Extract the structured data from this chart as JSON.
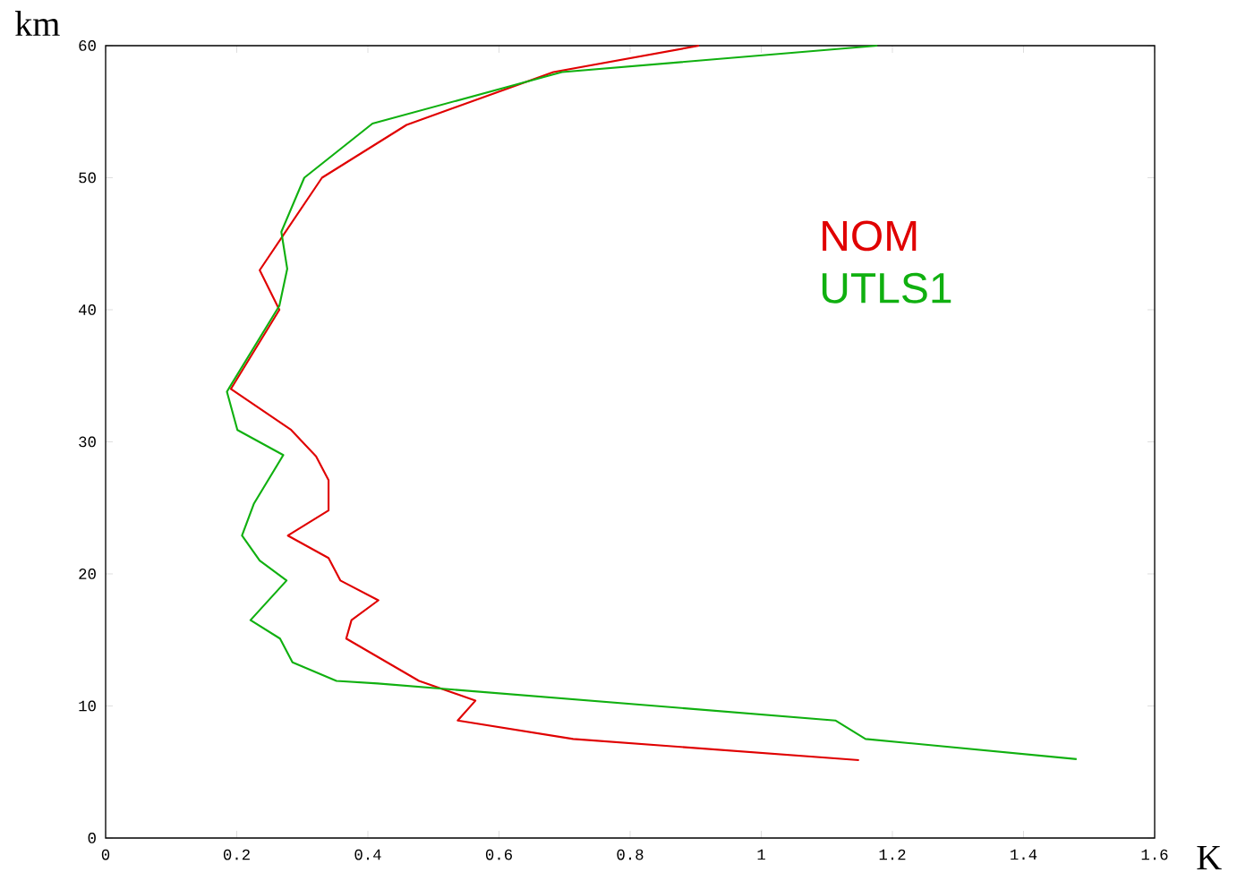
{
  "chart_data": {
    "type": "line",
    "xlabel": "K",
    "ylabel": "km",
    "xlim": [
      0,
      1.6
    ],
    "ylim": [
      0,
      60
    ],
    "xticks": [
      0,
      0.2,
      0.4,
      0.6,
      0.8,
      1,
      1.2,
      1.4,
      1.6
    ],
    "yticks": [
      0,
      10,
      20,
      30,
      40,
      50,
      60
    ],
    "legend": "top right",
    "grid": false,
    "marker": "none",
    "line_style": "solid",
    "series": [
      {
        "name": "NOM",
        "color": "#e00000",
        "x": [
          1.149,
          0.713,
          0.537,
          0.564,
          0.478,
          0.367,
          0.375,
          0.416,
          0.358,
          0.34,
          0.278,
          0.34,
          0.34,
          0.321,
          0.283,
          0.191,
          0.265,
          0.235,
          0.33,
          0.459,
          0.683,
          0.905
        ],
        "values": [
          5.9,
          7.5,
          8.9,
          10.4,
          11.9,
          15.1,
          16.5,
          18,
          19.5,
          21.2,
          22.9,
          24.8,
          27.1,
          28.9,
          30.9,
          34,
          40,
          43,
          50,
          54,
          58,
          60
        ]
      },
      {
        "name": "UTLS1",
        "color": "#10b010",
        "x": [
          1.481,
          1.159,
          1.113,
          0.415,
          0.352,
          0.285,
          0.266,
          0.221,
          0.276,
          0.235,
          0.208,
          0.226,
          0.271,
          0.201,
          0.185,
          0.265,
          0.277,
          0.268,
          0.303,
          0.407,
          0.696,
          1.177
        ],
        "values": [
          5.97,
          7.5,
          8.9,
          11.7,
          11.9,
          13.3,
          15.1,
          16.5,
          19.5,
          21,
          22.9,
          25.3,
          29,
          30.9,
          33.8,
          40.3,
          43.1,
          45.9,
          50,
          54.1,
          58,
          60
        ]
      }
    ]
  }
}
